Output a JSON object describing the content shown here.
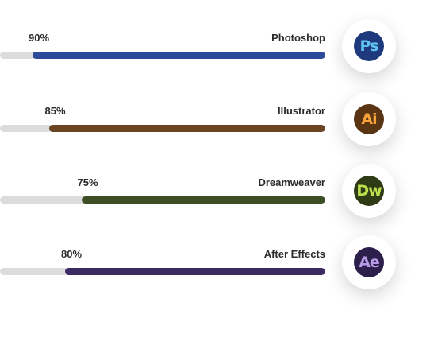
{
  "skills": [
    {
      "name": "Photoshop",
      "percent_label": "90%",
      "percent": 90,
      "icon": "photoshop-icon",
      "icon_text": "Ps",
      "bar_color": "#2d4a9a",
      "icon_bg": "#1f3a7c",
      "icon_fg": "#5fc2f0"
    },
    {
      "name": "Illustrator",
      "percent_label": "85%",
      "percent": 85,
      "icon": "illustrator-icon",
      "icon_text": "Ai",
      "bar_color": "#6b4522",
      "icon_bg": "#5a3514",
      "icon_fg": "#f7a33a"
    },
    {
      "name": "Dreamweaver",
      "percent_label": "75%",
      "percent": 75,
      "icon": "dreamweaver-icon",
      "icon_text": "Dw",
      "bar_color": "#3d4d24",
      "icon_bg": "#2e3b14",
      "icon_fg": "#bde04e"
    },
    {
      "name": "After Effects",
      "percent_label": "80%",
      "percent": 80,
      "icon": "after-effects-icon",
      "icon_text": "Ae",
      "bar_color": "#3c2a62",
      "icon_bg": "#2d1f4c",
      "icon_fg": "#b79be6"
    }
  ]
}
